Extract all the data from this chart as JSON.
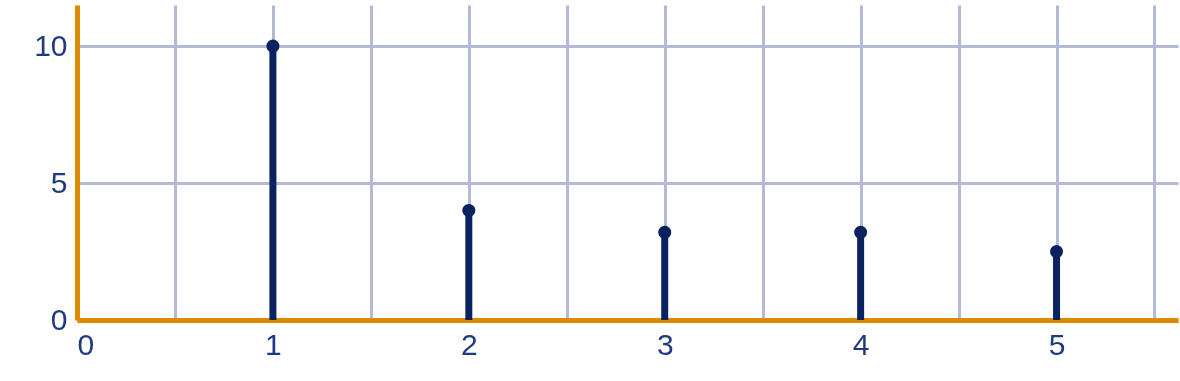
{
  "chart_data": {
    "type": "lollipop",
    "x": [
      1,
      2,
      3,
      4,
      5
    ],
    "series": [
      {
        "color": "#0b2260",
        "values": [
          10,
          4,
          3.2,
          3.2,
          2.5
        ]
      }
    ],
    "xlim": [
      0,
      5.62
    ],
    "xticks": [
      0,
      {
        "value": 0.5,
        "label": null
      },
      1,
      {
        "value": 1.5,
        "label": null
      },
      2,
      {
        "value": 2.5,
        "label": null
      },
      3,
      {
        "value": 3.5,
        "label": null
      },
      4,
      {
        "value": 4.5,
        "label": null
      },
      5,
      {
        "value": 5.5,
        "label": null
      }
    ],
    "ylim": [
      0,
      11.5
    ],
    "yticks": [
      0,
      5,
      10
    ],
    "grid": true,
    "marker": "circle"
  }
}
